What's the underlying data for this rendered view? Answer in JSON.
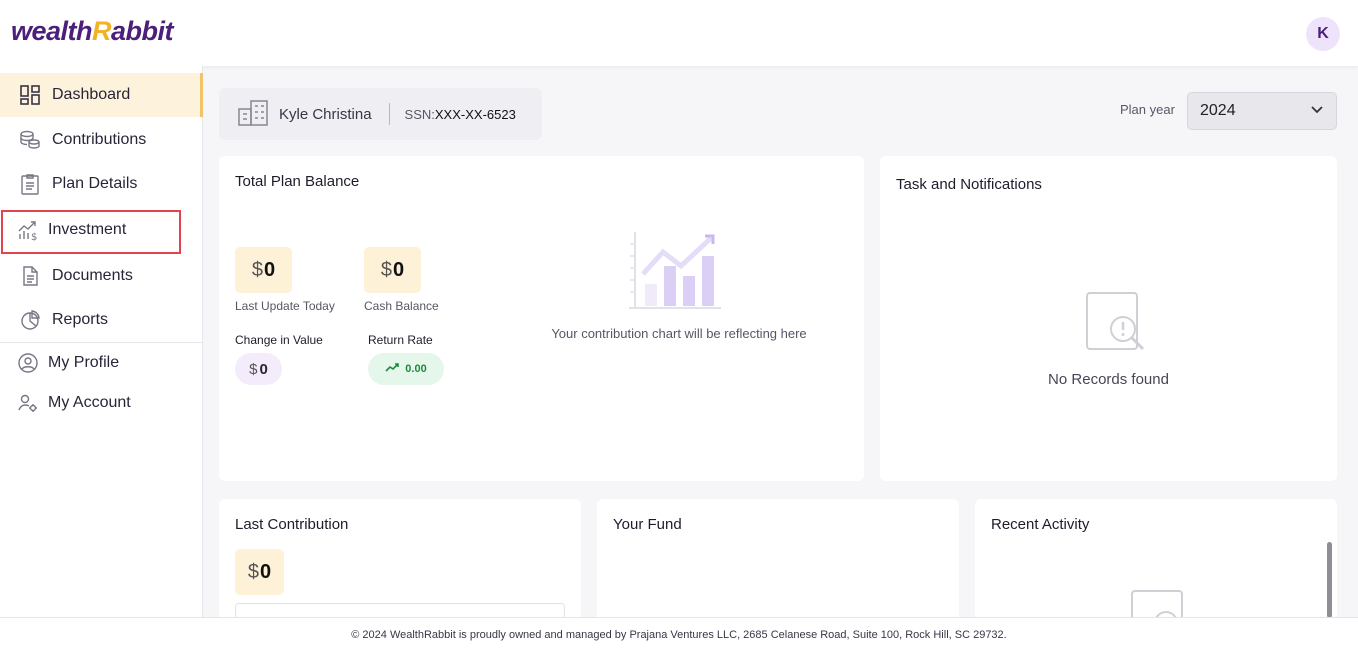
{
  "brand": {
    "name_left": "wealth",
    "name_r": "R",
    "name_right": "abbit"
  },
  "user": {
    "avatar_initial": "K",
    "name": "Kyle Christina",
    "ssn_label": "SSN:",
    "ssn_value": "XXX-XX-6523"
  },
  "sidebar": {
    "items": [
      {
        "label": "Dashboard",
        "icon": "dashboard-icon"
      },
      {
        "label": "Contributions",
        "icon": "coins-icon"
      },
      {
        "label": "Plan Details",
        "icon": "clipboard-icon"
      },
      {
        "label": "Investment",
        "icon": "investment-chart-icon"
      },
      {
        "label": "Documents",
        "icon": "document-icon"
      },
      {
        "label": "Reports",
        "icon": "pie-chart-icon"
      },
      {
        "label": "My Profile",
        "icon": "user-circle-icon"
      },
      {
        "label": "My Account",
        "icon": "user-gear-icon"
      }
    ]
  },
  "plan_year": {
    "label": "Plan year",
    "selected": "2024"
  },
  "total_plan_balance": {
    "title": "Total Plan Balance",
    "currency": "$",
    "last_update_value": "0",
    "last_update_label": "Last Update Today",
    "cash_balance_value": "0",
    "cash_balance_label": "Cash Balance",
    "change_label": "Change in Value",
    "change_value": "0",
    "return_label": "Return Rate",
    "return_value": "0.00",
    "chart_message": "Your contribution chart will be reflecting here"
  },
  "tasks": {
    "title": "Task and Notifications",
    "empty": "No Records found"
  },
  "last_contribution": {
    "title": "Last Contribution",
    "currency": "$",
    "value": "0"
  },
  "your_fund": {
    "title": "Your Fund"
  },
  "recent_activity": {
    "title": "Recent Activity"
  },
  "footer": {
    "text": "© 2024 WealthRabbit is proudly owned and managed by Prajana Ventures LLC, 2685 Celanese Road, Suite 100, Rock Hill, SC 29732."
  },
  "colors": {
    "brand_purple": "#4b1f7a",
    "brand_gold": "#f2b227",
    "highlight_red": "#e0454d",
    "active_bg": "#fdf3dd"
  }
}
